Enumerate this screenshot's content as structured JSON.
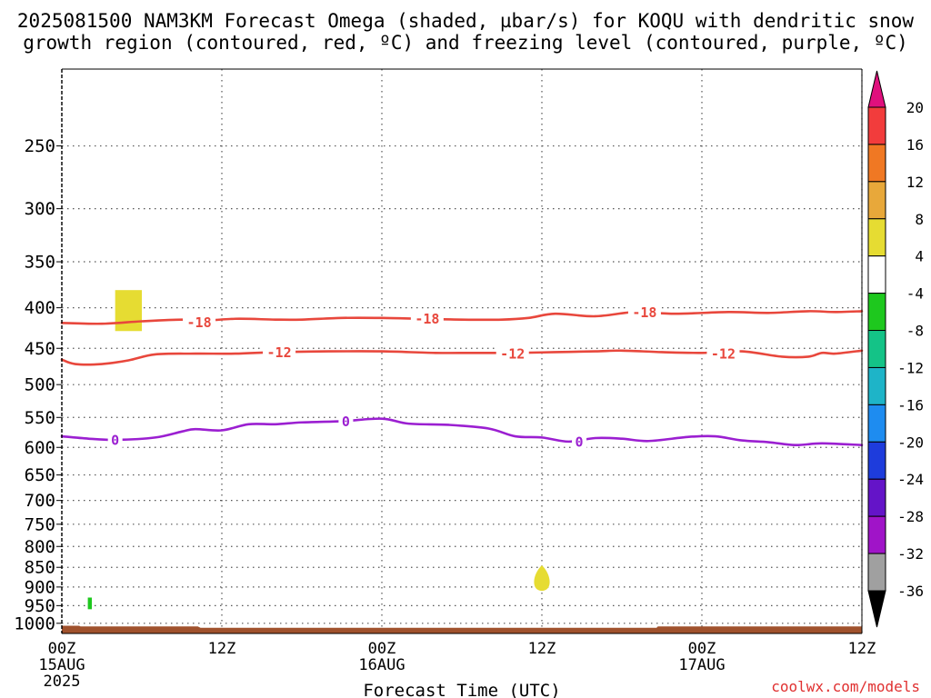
{
  "chart_data": {
    "type": "contour-timeheight",
    "title_line1": "2025081500 NAM3KM Forecast Omega (shaded, µbar/s) for KOQU with dendritic snow",
    "title_line2": "growth region (contoured, red, ºC) and freezing level (contoured, purple, ºC)",
    "xlabel": "Forecast Time (UTC)",
    "credit": "coolwx.com/models",
    "x_range_hours": [
      0,
      60
    ],
    "y_range_hpa": [
      1030,
      200
    ],
    "x_ticks": [
      {
        "hour": 0,
        "label": "00Z",
        "date": "15AUG",
        "year": "2025"
      },
      {
        "hour": 12,
        "label": "12Z",
        "date": "",
        "year": ""
      },
      {
        "hour": 24,
        "label": "00Z",
        "date": "16AUG",
        "year": ""
      },
      {
        "hour": 36,
        "label": "12Z",
        "date": "",
        "year": ""
      },
      {
        "hour": 48,
        "label": "00Z",
        "date": "17AUG",
        "year": ""
      },
      {
        "hour": 60,
        "label": "12Z",
        "date": "",
        "year": ""
      }
    ],
    "y_ticks": [
      250,
      300,
      350,
      400,
      450,
      500,
      550,
      600,
      650,
      700,
      750,
      800,
      850,
      900,
      950,
      1000
    ],
    "contours": [
      {
        "name": "-18",
        "color": "#e8473c",
        "label_positions": [
          [
            10.3,
            417
          ],
          [
            27.4,
            413
          ],
          [
            43.7,
            405
          ]
        ],
        "points": [
          [
            0,
            418
          ],
          [
            3,
            419
          ],
          [
            6,
            416
          ],
          [
            9,
            414
          ],
          [
            10,
            416
          ],
          [
            13,
            413
          ],
          [
            16,
            414
          ],
          [
            18,
            414
          ],
          [
            21,
            412
          ],
          [
            24,
            412
          ],
          [
            27,
            413
          ],
          [
            30,
            414
          ],
          [
            33,
            414
          ],
          [
            35,
            412
          ],
          [
            37,
            407
          ],
          [
            40,
            410
          ],
          [
            43,
            405
          ],
          [
            46,
            407
          ],
          [
            50,
            405
          ],
          [
            53,
            406
          ],
          [
            56,
            404
          ],
          [
            58,
            405
          ],
          [
            60,
            404
          ]
        ]
      },
      {
        "name": "-12",
        "color": "#e8473c",
        "label_positions": [
          [
            16.3,
            455
          ],
          [
            33.8,
            457
          ],
          [
            49.6,
            457
          ]
        ],
        "points": [
          [
            0,
            465
          ],
          [
            1,
            471
          ],
          [
            3,
            471
          ],
          [
            5,
            466
          ],
          [
            7,
            458
          ],
          [
            10,
            457
          ],
          [
            13,
            457
          ],
          [
            16,
            455
          ],
          [
            20,
            454
          ],
          [
            24,
            454
          ],
          [
            28,
            456
          ],
          [
            31,
            456
          ],
          [
            34,
            456
          ],
          [
            37,
            455
          ],
          [
            40,
            454
          ],
          [
            42,
            453
          ],
          [
            45,
            455
          ],
          [
            48,
            456
          ],
          [
            51,
            454
          ],
          [
            54,
            461
          ],
          [
            56,
            461
          ],
          [
            57,
            456
          ],
          [
            58,
            457
          ],
          [
            60,
            453
          ]
        ]
      },
      {
        "name": "0",
        "color": "#9b1fd1",
        "label_positions": [
          [
            4.0,
            587
          ],
          [
            21.3,
            556
          ],
          [
            38.8,
            590
          ]
        ],
        "points": [
          [
            0,
            581
          ],
          [
            2,
            585
          ],
          [
            4,
            587
          ],
          [
            7,
            583
          ],
          [
            9,
            573
          ],
          [
            10,
            569
          ],
          [
            12,
            571
          ],
          [
            14,
            561
          ],
          [
            16,
            561
          ],
          [
            18,
            558
          ],
          [
            21,
            556
          ],
          [
            24,
            552
          ],
          [
            26,
            560
          ],
          [
            29,
            562
          ],
          [
            32,
            568
          ],
          [
            34,
            581
          ],
          [
            36,
            583
          ],
          [
            38,
            590
          ],
          [
            40,
            584
          ],
          [
            42,
            585
          ],
          [
            44,
            589
          ],
          [
            47,
            582
          ],
          [
            49,
            581
          ],
          [
            51,
            588
          ],
          [
            53,
            591
          ],
          [
            55,
            596
          ],
          [
            57,
            593
          ],
          [
            60,
            596
          ]
        ]
      }
    ],
    "shaded_regions": [
      {
        "name": "omega-4-to-8",
        "color": "#e6dc32",
        "shape": "rect",
        "hours": [
          4.0,
          6.0
        ],
        "hpa": [
          380,
          428
        ]
      },
      {
        "name": "omega-4-to-8",
        "color": "#e6dc32",
        "shape": "ellipse",
        "center": [
          36.0,
          877
        ],
        "radius_hours": 0.65,
        "hpa_span": [
          845,
          910
        ]
      },
      {
        "name": "omega-minus8-to-minus4",
        "color": "#1ec81e",
        "shape": "rect",
        "hours": [
          1.95,
          2.25
        ],
        "hpa": [
          928,
          960
        ]
      }
    ],
    "terrain": {
      "color": "#a0522d",
      "points": [
        [
          0,
          1007
        ],
        [
          1.3,
          1007
        ],
        [
          1.4,
          1009
        ],
        [
          10.2,
          1009
        ],
        [
          10.4,
          1013
        ],
        [
          44.6,
          1013
        ],
        [
          44.7,
          1009
        ],
        [
          60,
          1009
        ]
      ]
    },
    "colorbar": {
      "labels": [
        "20",
        "16",
        "12",
        "8",
        "4",
        "-4",
        "-8",
        "-12",
        "-16",
        "-20",
        "-24",
        "-28",
        "-32",
        "-36"
      ],
      "top_arrow_color": "#e0107d",
      "bottom_arrow_color": "#000000",
      "bins": [
        {
          "from": "20",
          "to": "16",
          "color": "#f23c3c"
        },
        {
          "from": "16",
          "to": "12",
          "color": "#f07823"
        },
        {
          "from": "12",
          "to": "8",
          "color": "#e8a83a"
        },
        {
          "from": "8",
          "to": "4",
          "color": "#e6dc32"
        },
        {
          "from": "4",
          "to": "-4",
          "color": "#ffffff"
        },
        {
          "from": "-4",
          "to": "-8",
          "color": "#1ec81e"
        },
        {
          "from": "-8",
          "to": "-12",
          "color": "#14c387"
        },
        {
          "from": "-12",
          "to": "-16",
          "color": "#1eb4c8"
        },
        {
          "from": "-16",
          "to": "-20",
          "color": "#1e8cf0"
        },
        {
          "from": "-20",
          "to": "-24",
          "color": "#1e3cdc"
        },
        {
          "from": "-24",
          "to": "-28",
          "color": "#6414c8"
        },
        {
          "from": "-28",
          "to": "-32",
          "color": "#a014c8"
        },
        {
          "from": "-32",
          "to": "-36",
          "color": "#a0a0a0"
        }
      ]
    }
  }
}
